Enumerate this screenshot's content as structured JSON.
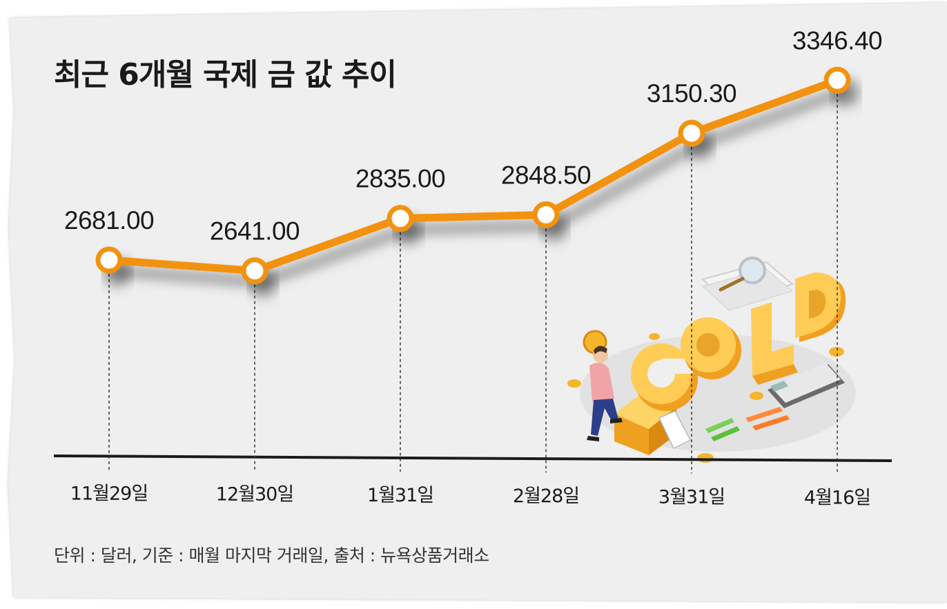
{
  "title": "최근 6개월 국제 금 값 추이",
  "footnote": "단위 : 달러, 기준 : 매월 마지막 거래일, 출처 : 뉴욕상품거래소",
  "colors": {
    "line": "#f2920f",
    "marker_fill": "#ffffff",
    "background": "#efefef",
    "axis": "#1a1a1a",
    "gold": "#f5b52a"
  },
  "illustration": {
    "description_icon": "gold-illustration",
    "letters": "GOLD"
  },
  "chart_data": {
    "type": "line",
    "categories": [
      "11월29일",
      "12월30일",
      "1월31일",
      "2월28일",
      "3월31일",
      "4월16일"
    ],
    "values": [
      2681.0,
      2641.0,
      2835.0,
      2848.5,
      3150.3,
      3346.4
    ],
    "value_labels": [
      "2681.00",
      "2641.00",
      "2835.00",
      "2848.50",
      "3150.30",
      "3346.40"
    ],
    "ylim": [
      2100,
      3500
    ],
    "grid": false,
    "legend": "none"
  }
}
